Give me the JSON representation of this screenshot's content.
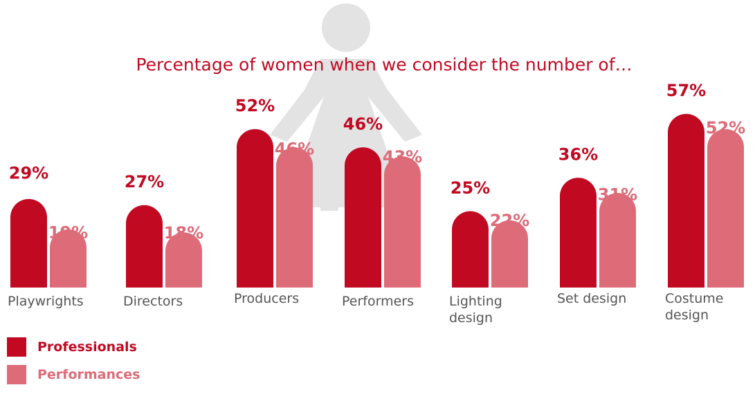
{
  "chart_data": {
    "type": "bar",
    "title": "Percentage of women when we consider the number of…",
    "categories": [
      "Playwrights",
      "Directors",
      "Producers",
      "Performers",
      "Lighting design",
      "Set design",
      "Costume design"
    ],
    "series": [
      {
        "name": "Professionals",
        "values": [
          29,
          27,
          52,
          46,
          25,
          36,
          57
        ],
        "labels": [
          "29%",
          "27%",
          "52%",
          "46%",
          "25%",
          "36%",
          "57%"
        ]
      },
      {
        "name": "Performances",
        "values": [
          19,
          18,
          46,
          43,
          22,
          31,
          52
        ],
        "labels": [
          "19%",
          "18%",
          "46%",
          "43%",
          "22%",
          "31%",
          "52%"
        ]
      }
    ],
    "ylim": [
      0,
      60
    ],
    "grid": false,
    "legend_position": "bottom-left",
    "colors": {
      "professionals": "#c10a22",
      "performances": "#dd6b78",
      "title": "#c10a22",
      "background_figure": "#e3e3e3"
    },
    "background_figure_icon": "woman-silhouette-icon"
  },
  "legend": {
    "items": [
      {
        "label": "Professionals",
        "color": "#c10a22"
      },
      {
        "label": "Performances",
        "color": "#dd6b78"
      }
    ]
  }
}
